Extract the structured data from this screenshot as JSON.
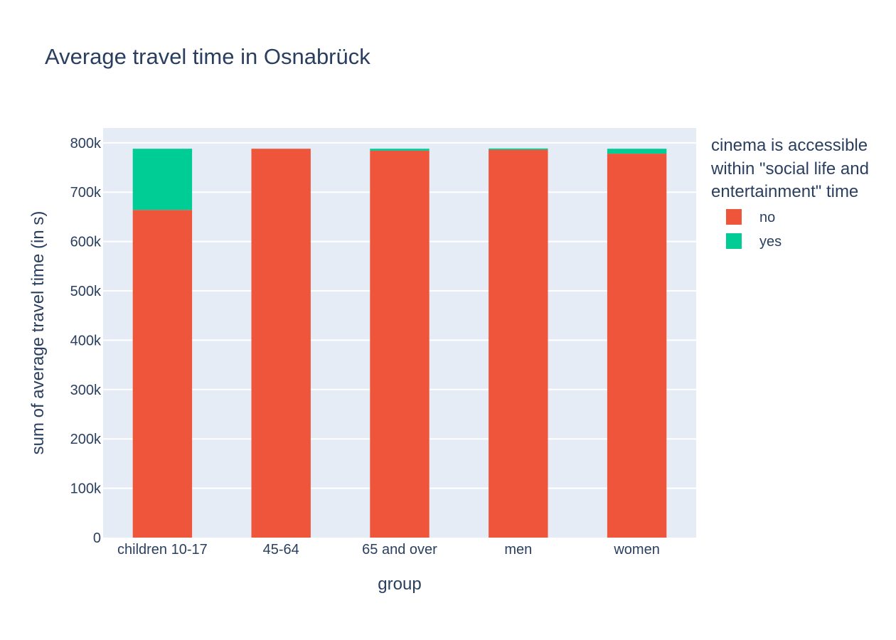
{
  "chart_data": {
    "type": "bar",
    "barmode": "stack",
    "title": "Average travel time in Osnabrück",
    "xlabel": "group",
    "ylabel": "sum of average travel time (in s)",
    "categories": [
      "children 10-17",
      "45-64",
      "65 and over",
      "men",
      "women"
    ],
    "series": [
      {
        "name": "no",
        "color": "#ef553b",
        "values": [
          664000,
          788000,
          784000,
          786000,
          778000
        ]
      },
      {
        "name": "yes",
        "color": "#00cc96",
        "values": [
          124000,
          0,
          4000,
          2500,
          10000
        ]
      }
    ],
    "ylim": [
      0,
      830000
    ],
    "yticks": [
      0,
      100000,
      200000,
      300000,
      400000,
      500000,
      600000,
      700000,
      800000
    ],
    "ytick_labels": [
      "0",
      "100k",
      "200k",
      "300k",
      "400k",
      "500k",
      "600k",
      "700k",
      "800k"
    ],
    "grid": true,
    "legend": {
      "title_lines": [
        "cinema is accessible",
        "within \"social life and",
        "entertainment\" time"
      ],
      "placement": "right"
    },
    "plot_background": "#e5ecf6"
  }
}
